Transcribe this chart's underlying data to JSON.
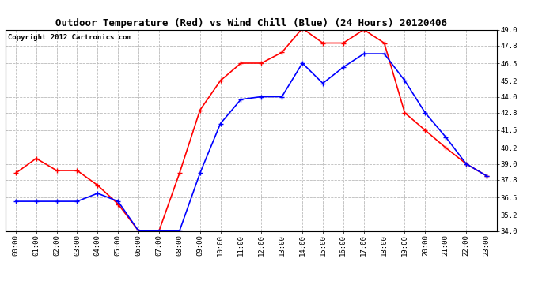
{
  "title": "Outdoor Temperature (Red) vs Wind Chill (Blue) (24 Hours) 20120406",
  "copyright_text": "Copyright 2012 Cartronics.com",
  "hours": [
    "00:00",
    "01:00",
    "02:00",
    "03:00",
    "04:00",
    "05:00",
    "06:00",
    "07:00",
    "08:00",
    "09:00",
    "10:00",
    "11:00",
    "12:00",
    "13:00",
    "14:00",
    "15:00",
    "16:00",
    "17:00",
    "18:00",
    "19:00",
    "20:00",
    "21:00",
    "22:00",
    "23:00"
  ],
  "red_temp": [
    38.3,
    39.4,
    38.5,
    38.5,
    37.4,
    36.0,
    34.0,
    34.0,
    38.3,
    43.0,
    45.2,
    46.5,
    46.5,
    47.3,
    49.1,
    48.0,
    48.0,
    49.0,
    48.0,
    42.8,
    41.5,
    40.2,
    39.0,
    38.1
  ],
  "blue_wc": [
    36.2,
    36.2,
    36.2,
    36.2,
    36.8,
    36.2,
    34.0,
    34.0,
    34.0,
    38.3,
    42.0,
    43.8,
    44.0,
    44.0,
    46.5,
    45.0,
    46.2,
    47.2,
    47.2,
    45.2,
    42.8,
    41.0,
    39.0,
    38.1
  ],
  "ylim_min": 34.0,
  "ylim_max": 49.0,
  "yticks": [
    34.0,
    35.2,
    36.5,
    37.8,
    39.0,
    40.2,
    41.5,
    42.8,
    44.0,
    45.2,
    46.5,
    47.8,
    49.0
  ],
  "red_color": "#ff0000",
  "blue_color": "#0000ff",
  "background_color": "#ffffff",
  "grid_color": "#bbbbbb",
  "title_fontsize": 9,
  "copyright_fontsize": 6.5,
  "tick_fontsize": 6.5,
  "marker": "+",
  "marker_size": 4,
  "line_width": 1.2
}
